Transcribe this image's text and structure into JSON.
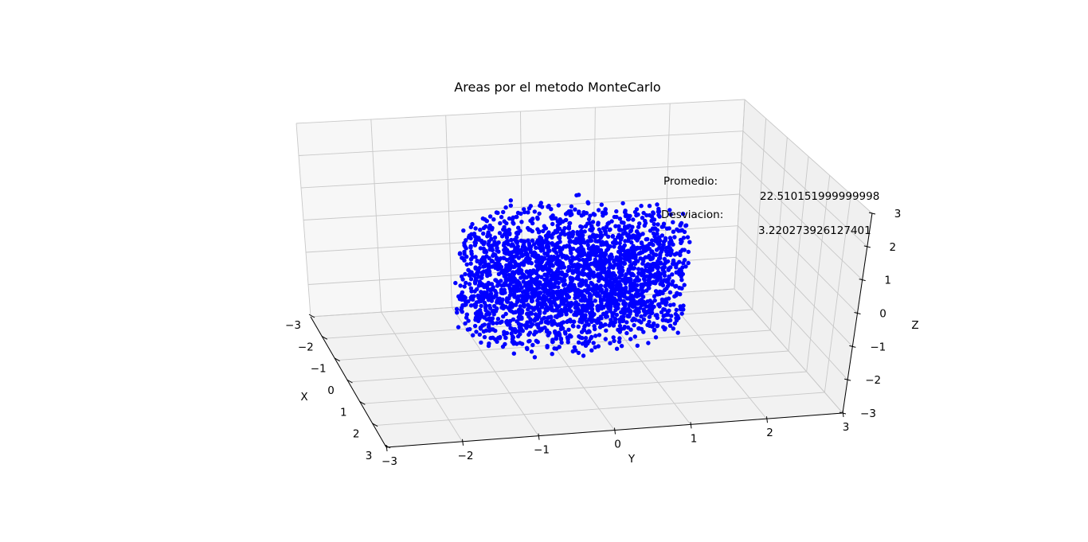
{
  "chart_data": {
    "type": "scatter",
    "projection": "3d",
    "title": "Areas por el metodo MonteCarlo",
    "xlabel": "X",
    "ylabel": "Y",
    "zlabel": "Z",
    "xlim": [
      -3,
      3
    ],
    "ylim": [
      -3,
      3
    ],
    "zlim": [
      -3,
      3
    ],
    "x_ticks": [
      "−3",
      "−2",
      "−1",
      "0",
      "1",
      "2",
      "3"
    ],
    "y_ticks": [
      "−3",
      "−2",
      "−1",
      "0",
      "1",
      "2",
      "3"
    ],
    "z_ticks": [
      "−3",
      "−2",
      "−1",
      "0",
      "1",
      "2",
      "3"
    ],
    "grid": true,
    "marker_color": "#0000ff",
    "point_cloud": {
      "shape": "cylinder",
      "center": [
        0,
        0,
        0
      ],
      "radius": 1.5,
      "z_range": [
        -1.6,
        1.6
      ],
      "count": 2600
    },
    "annotations": [
      {
        "text": "Promedio:"
      },
      {
        "text": "22.510151999999998"
      },
      {
        "text": "Desviacion:"
      },
      {
        "text": "3.220273926127401"
      }
    ]
  }
}
